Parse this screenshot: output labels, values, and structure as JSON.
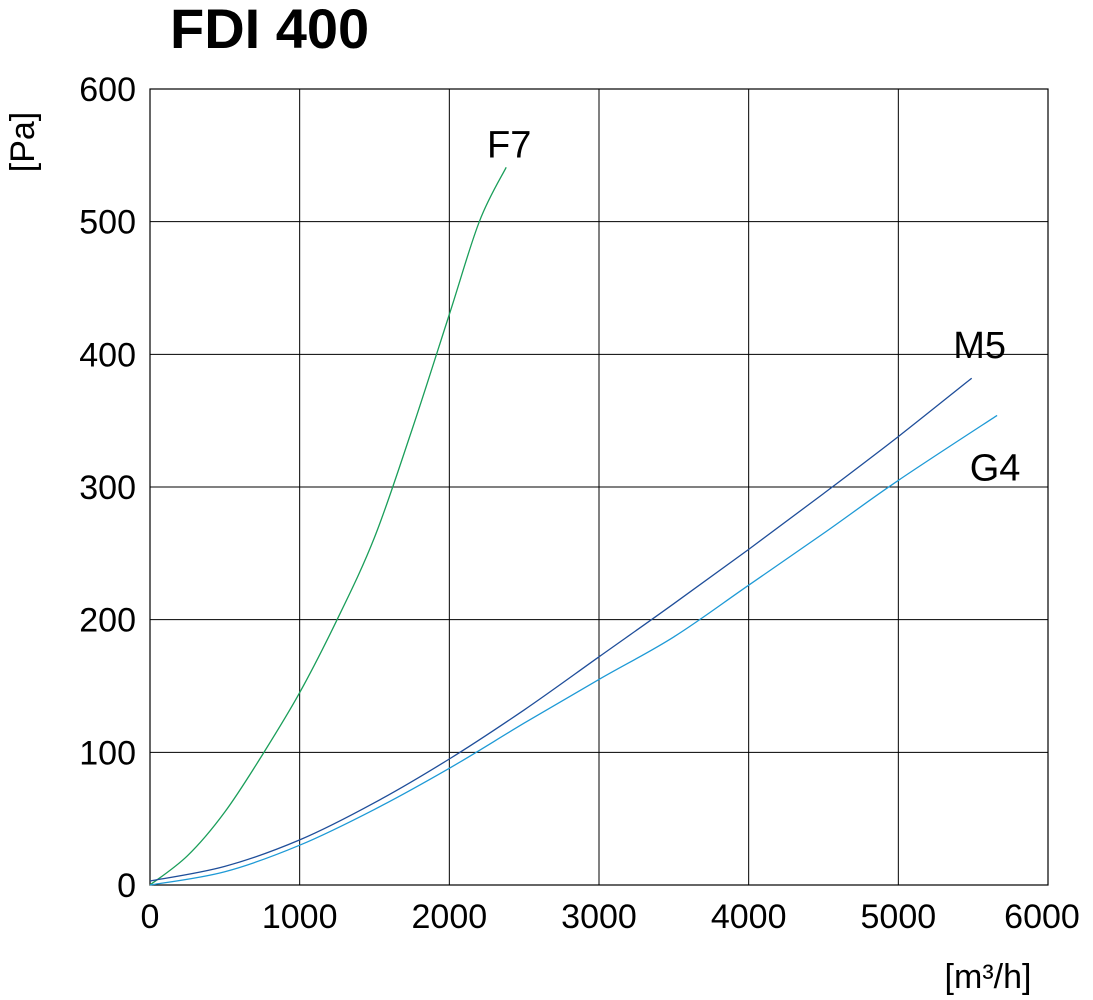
{
  "chart_data": {
    "type": "line",
    "title": "FDI 400",
    "xlabel": "[m³/h]",
    "ylabel": "[Pa]",
    "xlim": [
      0,
      6000
    ],
    "ylim": [
      0,
      600
    ],
    "x_ticks": [
      0,
      1000,
      2000,
      3000,
      4000,
      5000,
      6000
    ],
    "y_ticks": [
      0,
      100,
      200,
      300,
      400,
      500,
      600
    ],
    "grid": true,
    "series": [
      {
        "name": "F7",
        "color": "#1a9e5a",
        "x": [
          0,
          250,
          500,
          750,
          1000,
          1250,
          1500,
          1750,
          2000,
          2200,
          2380
        ],
        "y": [
          0,
          22,
          55,
          98,
          145,
          200,
          262,
          343,
          430,
          500,
          541
        ]
      },
      {
        "name": "M5",
        "color": "#1f4e9a",
        "x": [
          0,
          500,
          1000,
          1500,
          2000,
          2500,
          3000,
          3500,
          4000,
          4500,
          5000,
          5490
        ],
        "y": [
          3,
          14,
          34,
          62,
          95,
          132,
          172,
          212,
          253,
          295,
          338,
          382
        ]
      },
      {
        "name": "G4",
        "color": "#1e9ad6",
        "x": [
          0,
          500,
          1000,
          1500,
          2000,
          2500,
          3000,
          3500,
          4000,
          4500,
          5000,
          5660
        ],
        "y": [
          0,
          10,
          30,
          57,
          88,
          122,
          155,
          187,
          226,
          265,
          305,
          354
        ]
      }
    ]
  }
}
